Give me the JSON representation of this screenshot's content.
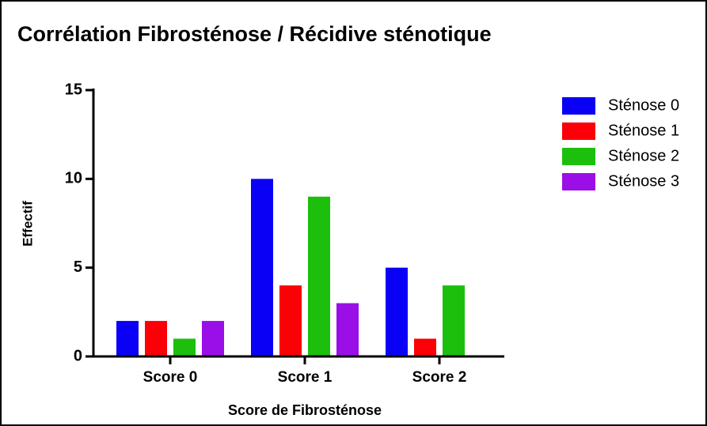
{
  "chart_data": {
    "type": "bar",
    "title": "Corrélation Fibrosténose / Récidive sténotique",
    "x_label": "Score de Fibrosténose",
    "y_label": "Effectif",
    "categories": [
      "Score 0",
      "Score 1",
      "Score 2"
    ],
    "series": [
      {
        "name": "Sténose 0",
        "color": "#0a00f5",
        "values": [
          2,
          10,
          5
        ]
      },
      {
        "name": "Sténose 1",
        "color": "#fb0007",
        "values": [
          2,
          4,
          1
        ]
      },
      {
        "name": "Sténose 2",
        "color": "#1cbf0c",
        "values": [
          1,
          9,
          4
        ]
      },
      {
        "name": "Sténose 3",
        "color": "#9a0fe8",
        "values": [
          2,
          3,
          0
        ]
      }
    ],
    "ylim": [
      0,
      15
    ],
    "yticks": [
      0,
      5,
      10,
      15
    ],
    "grid": false,
    "legend": "right"
  }
}
